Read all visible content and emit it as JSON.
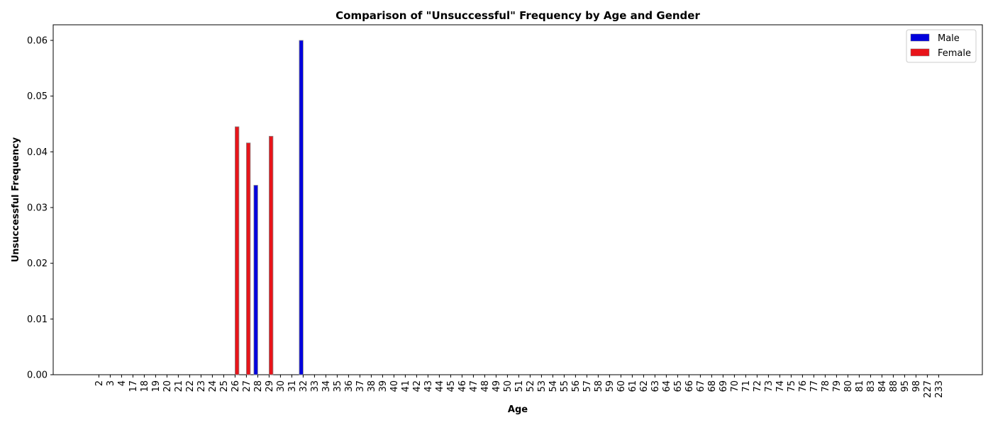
{
  "chart_data": {
    "type": "bar",
    "title": "Comparison of \"Unsuccessful\" Frequency by Age and Gender",
    "xlabel": "Age",
    "ylabel": "Unsuccessful Frequency",
    "ylim": [
      0,
      0.0628
    ],
    "yticks": [
      0.0,
      0.01,
      0.02,
      0.03,
      0.04,
      0.05,
      0.06
    ],
    "ytick_labels": [
      "0.00",
      "0.01",
      "0.02",
      "0.03",
      "0.04",
      "0.05",
      "0.06"
    ],
    "grid": false,
    "legend_position": "top-right",
    "categories": [
      "2",
      "3",
      "4",
      "17",
      "18",
      "19",
      "20",
      "21",
      "22",
      "23",
      "24",
      "25",
      "26",
      "27",
      "28",
      "29",
      "30",
      "31",
      "32",
      "33",
      "34",
      "35",
      "36",
      "37",
      "38",
      "39",
      "40",
      "41",
      "42",
      "43",
      "44",
      "45",
      "46",
      "47",
      "48",
      "49",
      "50",
      "51",
      "52",
      "53",
      "54",
      "55",
      "56",
      "57",
      "58",
      "59",
      "60",
      "61",
      "62",
      "63",
      "64",
      "65",
      "66",
      "67",
      "68",
      "69",
      "70",
      "71",
      "72",
      "73",
      "74",
      "75",
      "76",
      "77",
      "78",
      "79",
      "80",
      "81",
      "83",
      "84",
      "88",
      "95",
      "98",
      "227",
      "233"
    ],
    "series": [
      {
        "name": "Male",
        "color": "#0000dd",
        "values": [
          0,
          0,
          0,
          0,
          0,
          0,
          0,
          0,
          0,
          0,
          0,
          0,
          0,
          0,
          0.034,
          0,
          0,
          0,
          0.06,
          0,
          0,
          0,
          0,
          0,
          0,
          0,
          0,
          0,
          0,
          0,
          0,
          0,
          0,
          0,
          0,
          0,
          0,
          0,
          0,
          0,
          0,
          0,
          0,
          0,
          0,
          0,
          0,
          0,
          0,
          0,
          0,
          0,
          0,
          0,
          0,
          0,
          0,
          0,
          0,
          0,
          0,
          0,
          0,
          0,
          0,
          0,
          0,
          0,
          0,
          0,
          0,
          0,
          0,
          0,
          0
        ]
      },
      {
        "name": "Female",
        "color": "#e8141a",
        "values": [
          0,
          0,
          0,
          0,
          0,
          0,
          0,
          0,
          0,
          0,
          0,
          0,
          0.0445,
          0.0416,
          0,
          0.0428,
          0,
          0,
          0,
          0,
          0,
          0,
          0,
          0,
          0,
          0,
          0,
          0,
          0,
          0,
          0,
          0,
          0,
          0,
          0,
          0,
          0,
          0,
          0,
          0,
          0,
          0,
          0,
          0,
          0,
          0,
          0,
          0,
          0,
          0,
          0,
          0,
          0,
          0,
          0,
          0,
          0,
          0,
          0,
          0,
          0,
          0,
          0,
          0,
          0,
          0,
          0,
          0,
          0,
          0,
          0,
          0,
          0,
          0,
          0
        ]
      }
    ]
  }
}
